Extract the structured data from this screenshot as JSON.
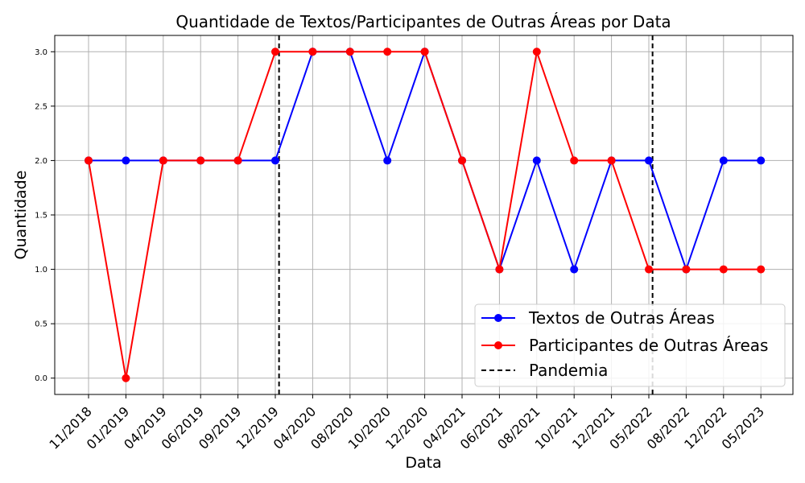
{
  "chart_data": {
    "type": "line",
    "title": "Quantidade de Textos/Participantes de Outras Áreas por Data",
    "xlabel": "Data",
    "ylabel": "Quantidade",
    "categories": [
      "11/2018",
      "01/2019",
      "04/2019",
      "06/2019",
      "09/2019",
      "12/2019",
      "04/2020",
      "08/2020",
      "10/2020",
      "12/2020",
      "04/2021",
      "06/2021",
      "08/2021",
      "10/2021",
      "12/2021",
      "05/2022",
      "08/2022",
      "12/2022",
      "05/2023"
    ],
    "yticks": [
      "0.0",
      "0.5",
      "1.0",
      "1.5",
      "2.0",
      "2.5",
      "3.0"
    ],
    "ylim": [
      -0.15,
      3.15
    ],
    "grid": true,
    "series": [
      {
        "name": "Textos de Outras Áreas",
        "color": "#0000ff",
        "values": [
          2,
          2,
          2,
          2,
          2,
          2,
          3,
          3,
          2,
          3,
          2,
          1,
          2,
          1,
          2,
          2,
          1,
          2,
          2
        ]
      },
      {
        "name": "Participantes de Outras Áreas",
        "color": "#ff0000",
        "values": [
          2,
          0,
          2,
          2,
          2,
          3,
          3,
          3,
          3,
          3,
          2,
          1,
          3,
          2,
          2,
          1,
          1,
          1,
          1
        ]
      }
    ],
    "vlines": [
      {
        "name": "Pandemia",
        "style": "dashed",
        "color": "#000000",
        "x": [
          5.1,
          15.1
        ]
      }
    ],
    "legend_position": "lower-right"
  }
}
